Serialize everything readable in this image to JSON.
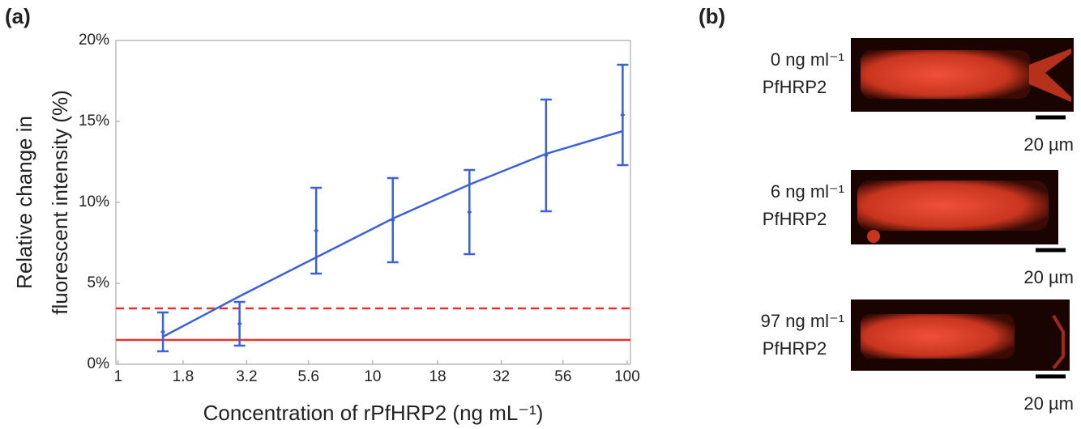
{
  "panel_labels": [
    "(a)",
    "(b)"
  ],
  "chart_data": {
    "type": "line",
    "xlabel": "Concentration of rPfHRP2 (ng mL⁻¹)",
    "ylabel": [
      "Relative change in",
      "fluorescent intensity (%)"
    ],
    "xscale": "log",
    "xlim": [
      0.98,
      103
    ],
    "ylim": [
      0,
      20
    ],
    "xticks": [
      1,
      1.8,
      3.2,
      5.6,
      10,
      18,
      32,
      56,
      100
    ],
    "yticks": [
      {
        "value": 0,
        "label": "0%"
      },
      {
        "value": 5,
        "label": "5%"
      },
      {
        "value": 10,
        "label": "10%"
      },
      {
        "value": 15,
        "label": "15%"
      },
      {
        "value": 20,
        "label": "20%"
      }
    ],
    "series": [
      {
        "type": "errorbar",
        "color": "#3a62d6",
        "x": [
          1.5,
          3,
          6,
          12,
          24,
          48,
          96
        ],
        "values": [
          2.0,
          2.5,
          8.25,
          8.9,
          9.4,
          12.9,
          15.4
        ],
        "errors": [
          1.2,
          1.35,
          2.65,
          2.6,
          2.6,
          3.45,
          3.1
        ]
      },
      {
        "type": "line",
        "color": "#3a62d6",
        "x": [
          1.5,
          3,
          6,
          12,
          24,
          48,
          96
        ],
        "values": [
          1.7,
          4.2,
          6.6,
          9.0,
          11.1,
          13.0,
          14.4
        ]
      }
    ],
    "hlines": [
      {
        "value": 1.5,
        "color": "#e8332f",
        "dash": false
      },
      {
        "value": 3.45,
        "color": "#e8332f",
        "dash": true
      }
    ]
  },
  "images": [
    {
      "concentration": "0 ng ml⁻¹",
      "protein": "PfHRP2",
      "scale": "20 µm"
    },
    {
      "concentration": "6 ng ml⁻¹",
      "protein": "PfHRP2",
      "scale": "20 µm"
    },
    {
      "concentration": "97 ng ml⁻¹",
      "protein": "PfHRP2",
      "scale": "20 µm"
    }
  ]
}
